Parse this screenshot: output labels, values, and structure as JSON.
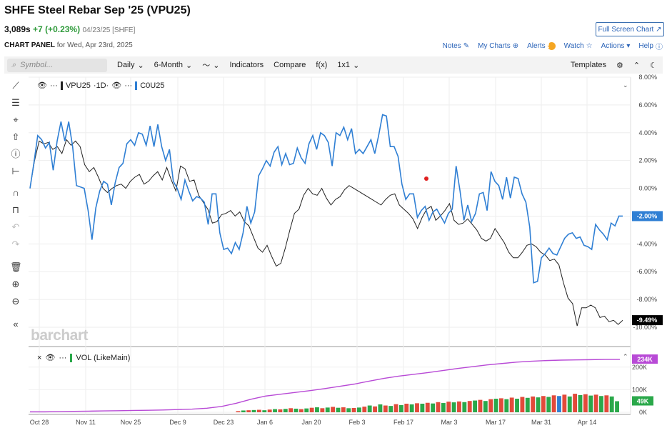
{
  "header": {
    "title": "SHFE Steel Rebar Sep '25 (VPU25)",
    "last": "3,089s",
    "change": "+7 (+0.23%)",
    "date_exchange": "04/23/25 [SHFE]",
    "full_screen_label": "Full Screen Chart"
  },
  "panel": {
    "label": "CHART PANEL",
    "subtitle": "for Wed, Apr 23rd, 2025"
  },
  "actions": {
    "notes": "Notes",
    "my_charts": "My Charts",
    "alerts": "Alerts",
    "watch": "Watch",
    "actions": "Actions",
    "help": "Help"
  },
  "toolbar": {
    "search_placeholder": "Symbol...",
    "interval": "Daily",
    "range": "6-Month",
    "indicators": "Indicators",
    "compare": "Compare",
    "fx": "f(x)",
    "layout": "1x1",
    "templates": "Templates"
  },
  "legend": {
    "main_symbol": "VPU25",
    "main_interval": "·1D·",
    "compare_symbol": "C0U25",
    "volume_label": "VOL (LikeMain)"
  },
  "watermark": "barchart",
  "colors": {
    "main": "#222222",
    "compare": "#2f7fd4",
    "volume_line": "#b84ad6",
    "up": "#2aa84a",
    "down": "#e24a3b",
    "neg_tag": "#000000",
    "comp_tag": "#2f7fd4"
  },
  "chart_data": {
    "type": "line",
    "y_axis_labels": [
      "8.00%",
      "6.00%",
      "4.00%",
      "2.00%",
      "0.00%",
      "-2.00%",
      "-4.00%",
      "-6.00%",
      "-8.00%",
      "-10.00%"
    ],
    "ylim": [
      -10,
      8
    ],
    "x_tick_labels": [
      "Oct 28",
      "Nov 11",
      "Nov 25",
      "Dec 9",
      "Dec 23",
      "Jan 6",
      "Jan 20",
      "Feb 3",
      "Feb 17",
      "Mar 3",
      "Mar 17",
      "Mar 31",
      "Apr 14"
    ],
    "last_tags": {
      "compare": "-2.00%",
      "main": "-9.49%"
    },
    "series": [
      {
        "name": "VPU25",
        "values": [
          0.0,
          2.0,
          3.4,
          3.2,
          3.3,
          2.8,
          3.0,
          2.5,
          3.5,
          3.1,
          3.4,
          3.0,
          1.7,
          1.2,
          1.5,
          0.8,
          0.0,
          -0.3,
          0.0,
          0.2,
          0.3,
          0.0,
          0.5,
          0.8,
          1.0,
          0.3,
          0.5,
          0.9,
          1.2,
          0.6,
          1.5,
          0.6,
          -0.2,
          1.6,
          1.4,
          0.5,
          0.6,
          -0.5,
          -1.0,
          -1.5,
          -2.5,
          -2.4,
          -1.9,
          -1.8,
          -1.6,
          -2.0,
          -1.7,
          -2.4,
          -2.7,
          -3.5,
          -4.3,
          -4.6,
          -4.1,
          -4.9,
          -5.6,
          -5.4,
          -4.3,
          -3.0,
          -1.8,
          -1.5,
          -0.5,
          0.0,
          -0.4,
          -0.5,
          0.0,
          -0.7,
          -1.2,
          -0.8,
          -0.6,
          -0.1,
          0.2,
          0.0,
          -0.2,
          -0.4,
          -0.6,
          -0.8,
          -1.0,
          -1.2,
          -0.8,
          -0.5,
          -0.4,
          -1.2,
          -1.5,
          -1.8,
          -2.2,
          -2.9,
          -2.1,
          -1.5,
          -1.3,
          -2.3,
          -2.0,
          -1.6,
          -1.1,
          -2.3,
          -2.6,
          -2.5,
          -2.2,
          -2.6,
          -3.0,
          -3.6,
          -3.8,
          -3.6,
          -2.9,
          -3.4,
          -3.9,
          -4.6,
          -5.0,
          -5.0,
          -4.6,
          -4.1,
          -4.0,
          -4.2,
          -4.6,
          -4.8,
          -5.2,
          -5.1,
          -5.5,
          -6.8,
          -7.9,
          -8.3,
          -9.9,
          -8.6,
          -8.6,
          -8.4,
          -8.6,
          -9.3,
          -9.2,
          -9.6,
          -9.5,
          -9.8,
          -9.5
        ]
      },
      {
        "name": "C0U25",
        "values": [
          0.0,
          1.8,
          3.8,
          3.5,
          2.9,
          3.3,
          1.3,
          3.4,
          4.8,
          3.4,
          4.8,
          3.0,
          0.2,
          0.1,
          0.0,
          -1.6,
          -3.7,
          -1.4,
          -0.2,
          0.5,
          0.3,
          -1.2,
          0.4,
          1.5,
          1.8,
          3.2,
          3.5,
          3.1,
          4.0,
          3.9,
          3.1,
          4.5,
          3.0,
          4.6,
          3.0,
          2.0,
          2.8,
          0.5,
          0.0,
          -0.8,
          0.6,
          -0.2,
          -0.9,
          -0.6,
          -0.7,
          -1.0,
          -2.6,
          -0.4,
          -0.4,
          -3.2,
          -4.4,
          -4.3,
          -4.7,
          -3.9,
          -4.4,
          -3.2,
          -1.3,
          -2.5,
          -1.7,
          0.9,
          1.4,
          2.0,
          1.6,
          2.6,
          3.0,
          1.7,
          2.5,
          1.7,
          1.8,
          2.9,
          2.2,
          1.8,
          3.2,
          3.8,
          2.8,
          4.0,
          3.8,
          3.3,
          1.6,
          4.0,
          3.8,
          4.4,
          3.5,
          4.3,
          2.5,
          2.8,
          2.5,
          3.0,
          3.5,
          2.5,
          3.8,
          5.3,
          5.2,
          3.0,
          3.0,
          2.3,
          0.3,
          -0.8,
          -0.4,
          -0.4,
          -2.1,
          -1.6,
          -1.3,
          -2.3,
          -1.7,
          -1.5,
          -2.0,
          -2.5,
          -1.8,
          -1.5,
          1.6,
          -0.2,
          -2.3,
          -1.2,
          -2.4,
          -1.8,
          -0.4,
          -0.3,
          -1.6,
          1.2,
          0.5,
          0.2,
          -0.8,
          0.8,
          -0.7,
          0.8,
          0.7,
          -0.4,
          -1.0,
          -2.8,
          -6.8,
          -6.7,
          -5.0,
          -4.7,
          -4.3,
          -4.7,
          -4.8,
          -4.2,
          -3.6,
          -3.3,
          -3.2,
          -3.6,
          -3.5,
          -4.1,
          -4.2,
          -4.4,
          -2.6,
          -3.0,
          -3.3,
          -3.7,
          -2.5,
          -2.7,
          -2.0,
          -2.0
        ]
      }
    ],
    "marker_point": {
      "series": "C0U25",
      "value": 0.7
    },
    "volume": {
      "y_axis_labels": [
        "234K",
        "200K",
        "100K",
        "0K"
      ],
      "ylim": [
        0,
        250
      ],
      "last_tag": "49K",
      "bars": [
        {
          "v": 5,
          "c": "down"
        },
        {
          "v": 8,
          "c": "up"
        },
        {
          "v": 9,
          "c": "down"
        },
        {
          "v": 10,
          "c": "up"
        },
        {
          "v": 11,
          "c": "down"
        },
        {
          "v": 9,
          "c": "up"
        },
        {
          "v": 12,
          "c": "down"
        },
        {
          "v": 14,
          "c": "up"
        },
        {
          "v": 13,
          "c": "down"
        },
        {
          "v": 15,
          "c": "up"
        },
        {
          "v": 18,
          "c": "down"
        },
        {
          "v": 16,
          "c": "up"
        },
        {
          "v": 14,
          "c": "down"
        },
        {
          "v": 17,
          "c": "up"
        },
        {
          "v": 20,
          "c": "down"
        },
        {
          "v": 22,
          "c": "up"
        },
        {
          "v": 18,
          "c": "down"
        },
        {
          "v": 21,
          "c": "up"
        },
        {
          "v": 24,
          "c": "down"
        },
        {
          "v": 20,
          "c": "up"
        },
        {
          "v": 22,
          "c": "down"
        },
        {
          "v": 18,
          "c": "up"
        },
        {
          "v": 19,
          "c": "down"
        },
        {
          "v": 21,
          "c": "up"
        },
        {
          "v": 25,
          "c": "down"
        },
        {
          "v": 30,
          "c": "up"
        },
        {
          "v": 26,
          "c": "down"
        },
        {
          "v": 35,
          "c": "up"
        },
        {
          "v": 30,
          "c": "down"
        },
        {
          "v": 28,
          "c": "up"
        },
        {
          "v": 36,
          "c": "down"
        },
        {
          "v": 32,
          "c": "up"
        },
        {
          "v": 38,
          "c": "down"
        },
        {
          "v": 35,
          "c": "up"
        },
        {
          "v": 40,
          "c": "down"
        },
        {
          "v": 38,
          "c": "up"
        },
        {
          "v": 42,
          "c": "down"
        },
        {
          "v": 39,
          "c": "up"
        },
        {
          "v": 45,
          "c": "down"
        },
        {
          "v": 41,
          "c": "up"
        },
        {
          "v": 47,
          "c": "down"
        },
        {
          "v": 44,
          "c": "up"
        },
        {
          "v": 48,
          "c": "down"
        },
        {
          "v": 45,
          "c": "up"
        },
        {
          "v": 50,
          "c": "down"
        },
        {
          "v": 52,
          "c": "up"
        },
        {
          "v": 55,
          "c": "down"
        },
        {
          "v": 50,
          "c": "up"
        },
        {
          "v": 58,
          "c": "down"
        },
        {
          "v": 60,
          "c": "up"
        },
        {
          "v": 62,
          "c": "down"
        },
        {
          "v": 58,
          "c": "up"
        },
        {
          "v": 65,
          "c": "down"
        },
        {
          "v": 60,
          "c": "up"
        },
        {
          "v": 68,
          "c": "down"
        },
        {
          "v": 64,
          "c": "up"
        },
        {
          "v": 70,
          "c": "down"
        },
        {
          "v": 66,
          "c": "up"
        },
        {
          "v": 72,
          "c": "down"
        },
        {
          "v": 68,
          "c": "up"
        },
        {
          "v": 75,
          "c": "down"
        },
        {
          "v": 72,
          "c": "blue"
        },
        {
          "v": 78,
          "c": "down"
        },
        {
          "v": 70,
          "c": "up"
        },
        {
          "v": 82,
          "c": "down"
        },
        {
          "v": 76,
          "c": "up"
        },
        {
          "v": 80,
          "c": "down"
        },
        {
          "v": 74,
          "c": "up"
        },
        {
          "v": 78,
          "c": "down"
        },
        {
          "v": 72,
          "c": "up"
        },
        {
          "v": 75,
          "c": "down"
        },
        {
          "v": 70,
          "c": "up"
        },
        {
          "v": 49,
          "c": "up"
        }
      ],
      "vol_ma": [
        2,
        2,
        3,
        4,
        5,
        6,
        7,
        8,
        9,
        10,
        12,
        14,
        18,
        26,
        40,
        58,
        72,
        80,
        88,
        96,
        105,
        115,
        125,
        138,
        150,
        160,
        168,
        176,
        185,
        194,
        202,
        210,
        216,
        222,
        226,
        229,
        231,
        232,
        233,
        234,
        234
      ]
    }
  }
}
